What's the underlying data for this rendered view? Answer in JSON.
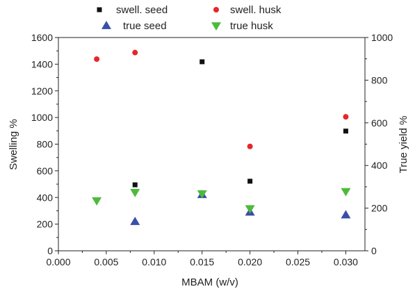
{
  "chart_data": {
    "type": "scatter",
    "title": "",
    "xlabel": "MBAM (w/v)",
    "ylabel": "Swelling %",
    "y2label": "True yield %",
    "xlim": [
      0.0,
      0.032
    ],
    "ylim": [
      0,
      1600
    ],
    "y2lim": [
      0,
      1000
    ],
    "x_ticks": [
      "0.000",
      "0.005",
      "0.010",
      "0.015",
      "0.020",
      "0.025",
      "0.030"
    ],
    "y_ticks": [
      "0",
      "200",
      "400",
      "600",
      "800",
      "1000",
      "1200",
      "1400",
      "1600"
    ],
    "y2_ticks": [
      "0",
      "200",
      "400",
      "600",
      "800",
      "1000"
    ],
    "grid": false,
    "legend_position": "top",
    "series": [
      {
        "name": "swell. seed",
        "axis": "left",
        "marker": "square",
        "color": "#111111",
        "points": [
          [
            0.008,
            495
          ],
          [
            0.015,
            1418
          ],
          [
            0.02,
            522
          ],
          [
            0.03,
            898
          ]
        ]
      },
      {
        "name": "swell. husk",
        "axis": "left",
        "marker": "circle",
        "color": "#e8262a",
        "points": [
          [
            0.004,
            1438
          ],
          [
            0.008,
            1487
          ],
          [
            0.015,
            430
          ],
          [
            0.02,
            783
          ],
          [
            0.03,
            1005
          ]
        ]
      },
      {
        "name": "true seed",
        "axis": "right",
        "marker": "triangle-up",
        "color": "#3a4fa8",
        "points": [
          [
            0.008,
            137
          ],
          [
            0.015,
            263
          ],
          [
            0.02,
            181
          ],
          [
            0.03,
            168
          ]
        ]
      },
      {
        "name": "true husk",
        "axis": "right",
        "marker": "triangle-down",
        "color": "#4cbb3a",
        "points": [
          [
            0.004,
            235
          ],
          [
            0.008,
            274
          ],
          [
            0.015,
            268
          ],
          [
            0.02,
            198
          ],
          [
            0.03,
            278
          ]
        ]
      }
    ]
  }
}
